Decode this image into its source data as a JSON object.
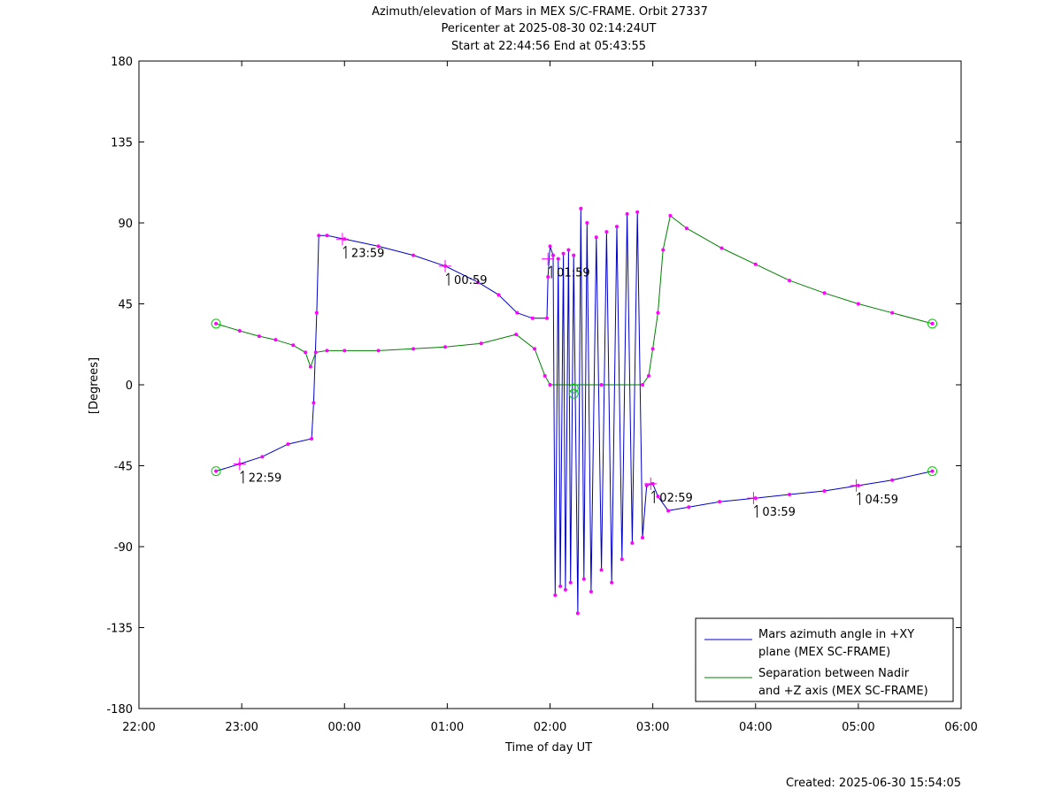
{
  "chart_data": {
    "type": "line",
    "title_lines": [
      "Azimuth/elevation of Mars in MEX S/C-FRAME.  Orbit 27337",
      "Pericenter at 2025-08-30 02:14:24UT",
      "Start at 22:44:56 End at 05:43:55"
    ],
    "xlabel": "Time of day UT",
    "ylabel": "[Degrees]",
    "xlim": [
      22.0,
      30.0
    ],
    "ylim": [
      -180,
      180
    ],
    "x_ticks": [
      22,
      23,
      24,
      25,
      26,
      27,
      28,
      29,
      30
    ],
    "x_tick_labels": [
      "22:00",
      "23:00",
      "00:00",
      "01:00",
      "02:00",
      "03:00",
      "04:00",
      "05:00",
      "06:00"
    ],
    "y_ticks": [
      180,
      135,
      90,
      45,
      0,
      -45,
      -90,
      -135,
      -180
    ],
    "y_tick_labels": [
      "180",
      "135",
      "90",
      "45",
      "0",
      "-45",
      "-90",
      "-135",
      "-180"
    ],
    "grid": false,
    "legend_position": "bottom-right",
    "series": [
      {
        "name": "Mars azimuth angle in +XY plane (MEX SC-FRAME)",
        "legend_lines": [
          "Mars azimuth angle in +XY",
          "plane (MEX SC-FRAME)"
        ],
        "color": "#0000cc",
        "points": [
          [
            22.75,
            -48
          ],
          [
            22.98,
            -44
          ],
          [
            23.2,
            -40
          ],
          [
            23.45,
            -33
          ],
          [
            23.68,
            -30
          ],
          [
            23.7,
            -10
          ],
          [
            23.73,
            40
          ],
          [
            23.75,
            83
          ],
          [
            23.83,
            83
          ],
          [
            24.0,
            81
          ],
          [
            24.33,
            77
          ],
          [
            24.67,
            72
          ],
          [
            24.98,
            66
          ],
          [
            25.3,
            57
          ],
          [
            25.5,
            50
          ],
          [
            25.68,
            40
          ],
          [
            25.83,
            37
          ],
          [
            25.97,
            37
          ],
          [
            25.98,
            60
          ],
          [
            26.0,
            77
          ],
          [
            26.03,
            72
          ],
          [
            26.05,
            -117
          ],
          [
            26.08,
            70
          ],
          [
            26.1,
            -112
          ],
          [
            26.13,
            73
          ],
          [
            26.15,
            -114
          ],
          [
            26.18,
            75
          ],
          [
            26.2,
            -110
          ],
          [
            26.23,
            72
          ],
          [
            26.27,
            -127
          ],
          [
            26.3,
            98
          ],
          [
            26.33,
            -108
          ],
          [
            26.36,
            90
          ],
          [
            26.4,
            -115
          ],
          [
            26.45,
            82
          ],
          [
            26.5,
            -103
          ],
          [
            26.55,
            85
          ],
          [
            26.6,
            -110
          ],
          [
            26.65,
            88
          ],
          [
            26.7,
            -97
          ],
          [
            26.75,
            95
          ],
          [
            26.8,
            -88
          ],
          [
            26.85,
            96
          ],
          [
            26.9,
            -85
          ],
          [
            26.94,
            -56
          ],
          [
            27.0,
            -55
          ],
          [
            27.05,
            -62
          ],
          [
            27.15,
            -70
          ],
          [
            27.35,
            -68
          ],
          [
            27.65,
            -65
          ],
          [
            28.0,
            -63
          ],
          [
            28.33,
            -61
          ],
          [
            28.67,
            -59
          ],
          [
            29.0,
            -56
          ],
          [
            29.33,
            -53
          ],
          [
            29.72,
            -48
          ]
        ]
      },
      {
        "name": "Separation between Nadir and +Z axis (MEX SC-FRAME)",
        "legend_lines": [
          "Separation between Nadir",
          "and +Z axis (MEX SC-FRAME)"
        ],
        "color": "#008000",
        "points": [
          [
            22.75,
            34
          ],
          [
            22.98,
            30
          ],
          [
            23.17,
            27
          ],
          [
            23.33,
            25
          ],
          [
            23.5,
            22
          ],
          [
            23.62,
            18
          ],
          [
            23.67,
            10
          ],
          [
            23.72,
            18
          ],
          [
            23.83,
            19
          ],
          [
            24.0,
            19
          ],
          [
            24.33,
            19
          ],
          [
            24.67,
            20
          ],
          [
            24.98,
            21
          ],
          [
            25.33,
            23
          ],
          [
            25.67,
            28
          ],
          [
            25.85,
            20
          ],
          [
            25.95,
            5
          ],
          [
            26.0,
            0
          ],
          [
            26.5,
            0
          ],
          [
            26.9,
            0
          ],
          [
            26.96,
            5
          ],
          [
            27.0,
            20
          ],
          [
            27.05,
            40
          ],
          [
            27.1,
            75
          ],
          [
            27.17,
            94
          ],
          [
            27.33,
            87
          ],
          [
            27.67,
            76
          ],
          [
            28.0,
            67
          ],
          [
            28.33,
            58
          ],
          [
            28.67,
            51
          ],
          [
            29.0,
            45
          ],
          [
            29.33,
            40
          ],
          [
            29.72,
            34
          ]
        ]
      }
    ],
    "markers": {
      "color": "#ff00ff",
      "start_end_circles": [
        [
          22.75,
          -48
        ],
        [
          22.75,
          34
        ],
        [
          29.72,
          -48
        ],
        [
          29.72,
          34
        ],
        [
          26.23,
          -2
        ],
        [
          26.23,
          -5
        ]
      ],
      "hour_labels": [
        {
          "label": "22:59",
          "x": 22.98,
          "y": -44,
          "side": "below"
        },
        {
          "label": "23:59",
          "x": 23.98,
          "y": 81,
          "side": "below"
        },
        {
          "label": "00:59",
          "x": 24.98,
          "y": 66,
          "side": "below"
        },
        {
          "label": "01:59",
          "x": 25.98,
          "y": 70,
          "side": "below"
        },
        {
          "label": "02:59",
          "x": 26.98,
          "y": -55,
          "side": "below"
        },
        {
          "label": "03:59",
          "x": 27.98,
          "y": -63,
          "side": "below"
        },
        {
          "label": "04:59",
          "x": 28.98,
          "y": -56,
          "side": "below"
        }
      ]
    },
    "footer": "Created: 2025-06-30 15:54:05"
  }
}
